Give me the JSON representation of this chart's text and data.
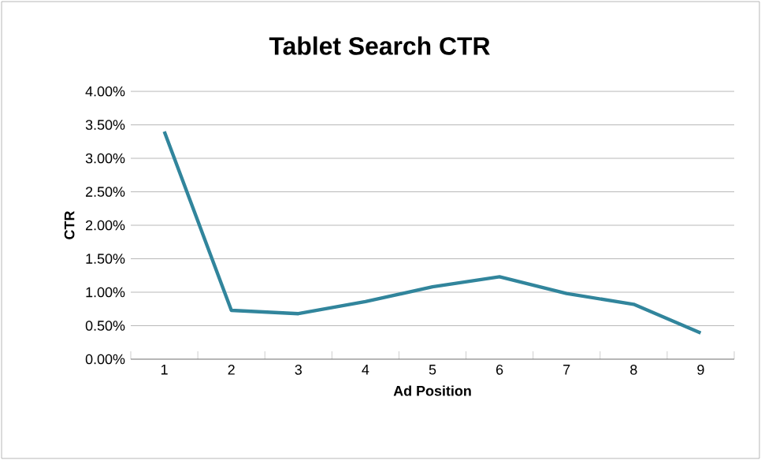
{
  "chart_data": {
    "type": "line",
    "title": "Tablet Search CTR",
    "xlabel": "Ad Position",
    "ylabel": "CTR",
    "categories": [
      "1",
      "2",
      "3",
      "4",
      "5",
      "6",
      "7",
      "8",
      "9"
    ],
    "series": [
      {
        "color": "#31859c",
        "values": [
          3.4,
          0.73,
          0.68,
          0.86,
          1.08,
          1.23,
          0.98,
          0.82,
          0.39
        ]
      }
    ],
    "ylim": [
      0,
      4
    ],
    "yticks": [
      {
        "value": 0,
        "label": "0.00%"
      },
      {
        "value": 0.5,
        "label": "0.50%"
      },
      {
        "value": 1,
        "label": "1.00%"
      },
      {
        "value": 1.5,
        "label": "1.50%"
      },
      {
        "value": 2,
        "label": "2.00%"
      },
      {
        "value": 2.5,
        "label": "2.50%"
      },
      {
        "value": 3,
        "label": "3.00%"
      },
      {
        "value": 3.5,
        "label": "3.50%"
      },
      {
        "value": 4,
        "label": "4.00%"
      }
    ],
    "grid": "y",
    "marker": "none",
    "line_style": "solid"
  }
}
